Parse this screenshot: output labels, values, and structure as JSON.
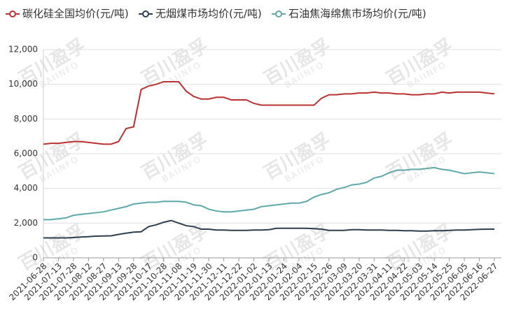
{
  "chart_data": {
    "type": "line",
    "watermark": {
      "text": "百川盈孚",
      "text_en": "BAIINFO"
    },
    "categories": [
      "2021-06-28",
      null,
      "2021-07-13",
      null,
      "2021-07-28",
      null,
      "2021-08-12",
      null,
      "2021-08-27",
      null,
      "2021-09-13",
      null,
      "2021-09-28",
      null,
      "2021-10-17",
      null,
      "2021-10-28",
      null,
      "2021-11-08",
      null,
      "2021-11-19",
      null,
      "2021-11-30",
      null,
      "2021-12-11",
      null,
      "2021-12-22",
      null,
      "2022-01-02",
      null,
      "2022-01-13",
      null,
      "2022-01-24",
      null,
      "2022-02-04",
      null,
      "2022-02-15",
      null,
      "2022-02-26",
      null,
      "2022-03-09",
      null,
      "2022-03-20",
      null,
      "2022-03-31",
      null,
      "2022-04-11",
      null,
      "2022-04-22",
      null,
      "2022-05-03",
      null,
      "2022-05-14",
      null,
      "2022-05-25",
      null,
      "2022-06-05",
      null,
      "2022-06-16",
      null,
      "2022-06-27"
    ],
    "series": [
      {
        "name": "碳化硅全国均价(元/吨)",
        "color": "#b83232",
        "values": [
          6550,
          6600,
          6600,
          6650,
          6700,
          6700,
          6650,
          6600,
          6550,
          6550,
          6700,
          7450,
          7550,
          9700,
          9900,
          10000,
          10150,
          10150,
          10150,
          9600,
          9300,
          9150,
          9150,
          9250,
          9250,
          9100,
          9100,
          9100,
          8900,
          8800,
          8800,
          8800,
          8800,
          8800,
          8800,
          8800,
          8800,
          9200,
          9400,
          9400,
          9450,
          9450,
          9500,
          9500,
          9550,
          9500,
          9500,
          9450,
          9450,
          9400,
          9400,
          9450,
          9450,
          9550,
          9500,
          9550,
          9550,
          9550,
          9550,
          9500,
          9450
        ]
      },
      {
        "name": "无烟煤市场均价(元/吨)",
        "color": "#2d3e4f",
        "values": [
          1150,
          1150,
          1150,
          1150,
          1170,
          1200,
          1220,
          1250,
          1260,
          1270,
          1350,
          1420,
          1480,
          1500,
          1800,
          1900,
          2050,
          2150,
          2000,
          1850,
          1800,
          1650,
          1650,
          1600,
          1600,
          1580,
          1580,
          1580,
          1600,
          1600,
          1620,
          1700,
          1700,
          1700,
          1700,
          1700,
          1680,
          1650,
          1580,
          1580,
          1580,
          1620,
          1620,
          1600,
          1600,
          1600,
          1580,
          1580,
          1560,
          1560,
          1540,
          1540,
          1560,
          1560,
          1580,
          1600,
          1600,
          1620,
          1640,
          1650,
          1650
        ]
      },
      {
        "name": "石油焦海绵焦市场均价(元/吨)",
        "color": "#5fa8a8",
        "values": [
          2200,
          2200,
          2250,
          2300,
          2450,
          2500,
          2550,
          2600,
          2650,
          2750,
          2850,
          2950,
          3100,
          3150,
          3200,
          3200,
          3250,
          3250,
          3250,
          3200,
          3050,
          3000,
          2800,
          2700,
          2650,
          2650,
          2700,
          2750,
          2800,
          2950,
          3000,
          3050,
          3100,
          3150,
          3150,
          3250,
          3500,
          3650,
          3750,
          3950,
          4050,
          4200,
          4250,
          4350,
          4600,
          4700,
          4900,
          5050,
          5050,
          5100,
          5100,
          5150,
          5200,
          5100,
          5050,
          4950,
          4850,
          4900,
          4950,
          4900,
          4850
        ]
      }
    ],
    "ylim": [
      0,
      12000
    ],
    "yticks": [
      0,
      {
        "value": 2000,
        "label": "2,000"
      },
      {
        "value": 4000,
        "label": "4,000"
      },
      {
        "value": 6000,
        "label": "6,000"
      },
      {
        "value": 8000,
        "label": "8,000"
      },
      {
        "value": 10000,
        "label": "10,000"
      },
      {
        "value": 12000,
        "label": "12,000"
      }
    ],
    "grid": true
  }
}
